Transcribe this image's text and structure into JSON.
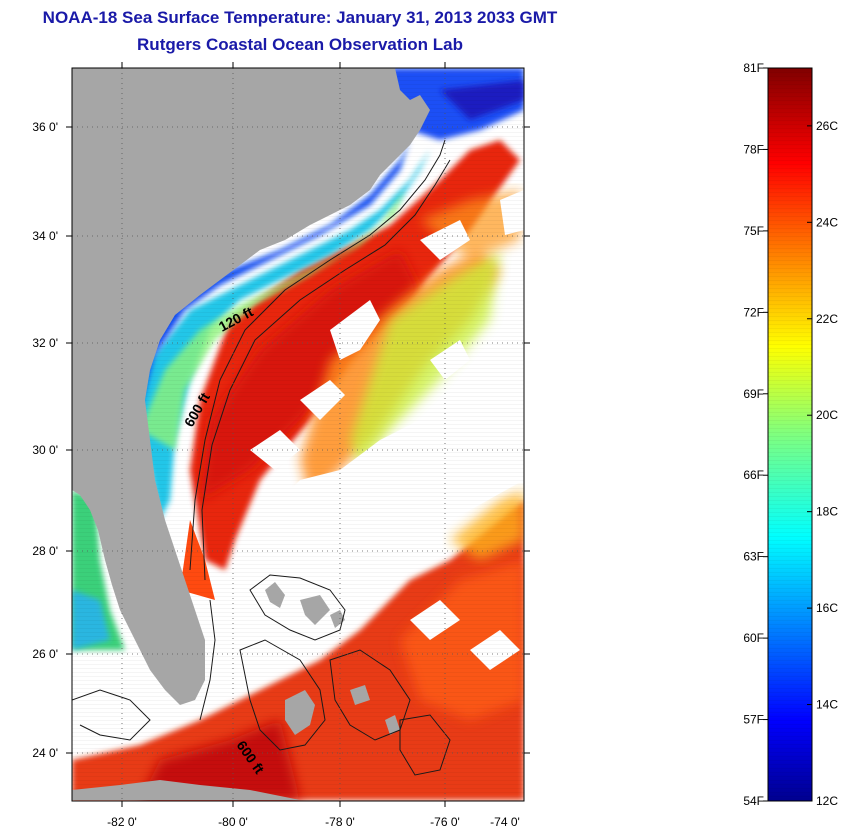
{
  "header": {
    "title": "NOAA-18 Sea Surface Temperature:  January 31, 2013 2033 GMT",
    "subtitle": "Rutgers Coastal Ocean Observation Lab"
  },
  "map": {
    "lon_range": [
      -83.0,
      -73.0
    ],
    "lat_range": [
      23.0,
      37.0
    ],
    "lon_ticks": [
      {
        "value": -82,
        "label": "-82 0'"
      },
      {
        "value": -80,
        "label": "-80 0'"
      },
      {
        "value": -78,
        "label": "-78 0'"
      },
      {
        "value": -76,
        "label": "-76 0'"
      },
      {
        "value": -74,
        "label": "-74 0'"
      }
    ],
    "lat_ticks": [
      {
        "value": 24,
        "label": "24 0'"
      },
      {
        "value": 26,
        "label": "26 0'"
      },
      {
        "value": 28,
        "label": "28 0'"
      },
      {
        "value": 30,
        "label": "30 0'"
      },
      {
        "value": 32,
        "label": "32 0'"
      },
      {
        "value": 34,
        "label": "34 0'"
      },
      {
        "value": 36,
        "label": "36 0'"
      }
    ],
    "grid": "dotted",
    "contour_labels": [
      "120 ft",
      "600 ft",
      "600 ft"
    ],
    "land_color": "#a6a6a6"
  },
  "colorbar": {
    "fahrenheit": [
      "81F",
      "78F",
      "75F",
      "72F",
      "69F",
      "66F",
      "63F",
      "60F",
      "57F",
      "54F"
    ],
    "celsius": [
      "26C",
      "24C",
      "22C",
      "20C",
      "18C",
      "16C",
      "14C",
      "12C"
    ],
    "range_f": [
      54,
      81
    ],
    "range_c": [
      12,
      27.2
    ],
    "colormap": "jet"
  }
}
